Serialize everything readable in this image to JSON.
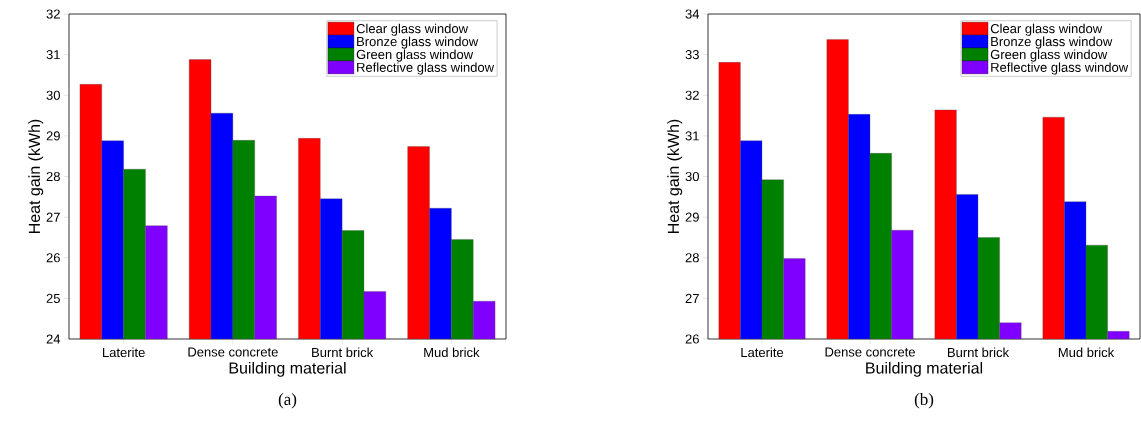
{
  "chart_data": [
    {
      "type": "bar",
      "xlabel": "Building material",
      "ylabel": "Heat gain (kWh)",
      "categories": [
        "Laterite",
        "Dense concrete",
        "Burnt brick",
        "Mud brick"
      ],
      "series": [
        {
          "name": "Clear glass window",
          "color": "#ff0000",
          "values": [
            30.27,
            30.88,
            28.94,
            28.74
          ]
        },
        {
          "name": "Bronze glass window",
          "color": "#0000ff",
          "values": [
            28.88,
            29.56,
            27.45,
            27.22
          ]
        },
        {
          "name": "Green glass window",
          "color": "#008000",
          "values": [
            28.18,
            28.89,
            26.67,
            26.45
          ]
        },
        {
          "name": "Reflective glass window",
          "color": "#8000ff",
          "values": [
            26.79,
            27.52,
            25.17,
            24.93
          ]
        }
      ],
      "ylim": [
        24,
        32
      ],
      "yticks": [
        24,
        25,
        26,
        27,
        28,
        29,
        30,
        31,
        32
      ],
      "legend": "top right",
      "annotations": [
        "(a)"
      ]
    },
    {
      "type": "bar",
      "xlabel": "Building material",
      "ylabel": "Heat gain (kWh)",
      "categories": [
        "Laterite",
        "Dense concrete",
        "Burnt brick",
        "Mud brick"
      ],
      "series": [
        {
          "name": "Clear glass window",
          "color": "#ff0000",
          "values": [
            32.81,
            33.37,
            31.64,
            31.46
          ]
        },
        {
          "name": "Bronze glass window",
          "color": "#0000ff",
          "values": [
            30.88,
            31.53,
            29.56,
            29.38
          ]
        },
        {
          "name": "Green glass window",
          "color": "#008000",
          "values": [
            29.92,
            30.57,
            28.5,
            28.31
          ]
        },
        {
          "name": "Reflective glass window",
          "color": "#8000ff",
          "values": [
            27.98,
            28.68,
            26.4,
            26.19
          ]
        }
      ],
      "ylim": [
        26,
        34
      ],
      "yticks": [
        26,
        27,
        28,
        29,
        30,
        31,
        32,
        33,
        34
      ],
      "legend": "top right",
      "annotations": [
        "(b)"
      ]
    }
  ]
}
